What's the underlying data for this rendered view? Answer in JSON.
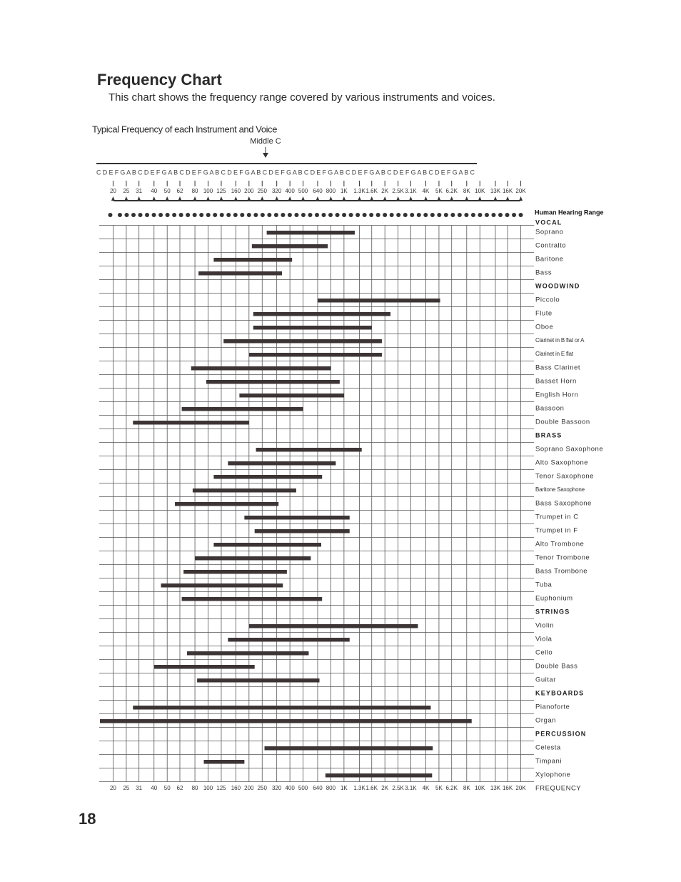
{
  "title": "Frequency Chart",
  "subtitle": "This chart shows the frequency range covered by various instruments and voices.",
  "page_number": "18",
  "chart_data": {
    "type": "range",
    "title": "Typical Frequency of each Instrument and Voice",
    "annotation": "Middle C",
    "note_scale": "C D E F G A B C D E F G A B C D E F G A B C D E F G A B C D E F G A B C D E F G A B C D E F G A B C D E F G A B C D E F G A B C",
    "range_label": "Human Hearing Range",
    "xlabel": "FREQUENCY",
    "xscale": "log",
    "xlim": [
      16,
      25000
    ],
    "xticks": [
      20,
      25,
      31,
      40,
      50,
      62,
      80,
      100,
      125,
      160,
      200,
      250,
      320,
      400,
      500,
      640,
      800,
      {
        "value": 1000,
        "label": "1K"
      },
      {
        "value": 1300,
        "label": "1.3K"
      },
      {
        "value": 1600,
        "label": "1.6K"
      },
      {
        "value": 2000,
        "label": "2K"
      },
      {
        "value": 2500,
        "label": "2.5K"
      },
      {
        "value": 3100,
        "label": "3.1K"
      },
      {
        "value": 4000,
        "label": "4K"
      },
      {
        "value": 5000,
        "label": "5K"
      },
      {
        "value": 6200,
        "label": "6.2K"
      },
      {
        "value": 8000,
        "label": "8K"
      },
      {
        "value": 10000,
        "label": "10K"
      },
      {
        "value": 13000,
        "label": "13K"
      },
      {
        "value": 16000,
        "label": "16K"
      },
      {
        "value": 20000,
        "label": "20K"
      }
    ],
    "grid": true,
    "color": "#3d3535",
    "categories": [
      "VOCAL",
      "Soprano",
      "Contralto",
      "Baritone",
      "Bass",
      "WOODWIND",
      "Piccolo",
      "Flute",
      "Oboe",
      "Clarinet in B flat or A",
      "Clarinet in E flat",
      "Bass Clarinet",
      "Basset Horn",
      "English Horn",
      "Bassoon",
      "Double Bassoon",
      "BRASS",
      "Soprano Saxophone",
      "Alto Saxophone",
      "Tenor Saxophone",
      "Baritone Saxophone",
      "Bass Saxophone",
      "Trumpet in C",
      "Trumpet in F",
      "Alto Trombone",
      "Tenor Trombone",
      "Bass Trombone",
      "Tuba",
      "Euphonium",
      "STRINGS",
      "Violin",
      "Viola",
      "Cello",
      "Double Bass",
      "Guitar",
      "KEYBOARDS",
      "Pianoforte",
      "Organ",
      "PERCUSSION",
      "Celesta",
      "Timpani",
      "Xylophone"
    ],
    "low": [
      null,
      270,
      210,
      110,
      85,
      null,
      640,
      215,
      215,
      130,
      200,
      75,
      97,
      170,
      64,
      28,
      null,
      225,
      140,
      110,
      77,
      57,
      185,
      220,
      110,
      80,
      66,
      45,
      64,
      null,
      200,
      140,
      70,
      40,
      83,
      null,
      28,
      16,
      null,
      260,
      93,
      730
    ],
    "high": [
      null,
      1200,
      760,
      415,
      350,
      null,
      5100,
      2200,
      1600,
      1900,
      1900,
      800,
      930,
      1000,
      500,
      200,
      null,
      1350,
      870,
      690,
      445,
      330,
      1100,
      1100,
      680,
      570,
      380,
      355,
      690,
      null,
      3500,
      1100,
      550,
      220,
      660,
      null,
      4350,
      8700,
      null,
      4500,
      185,
      4450
    ]
  }
}
